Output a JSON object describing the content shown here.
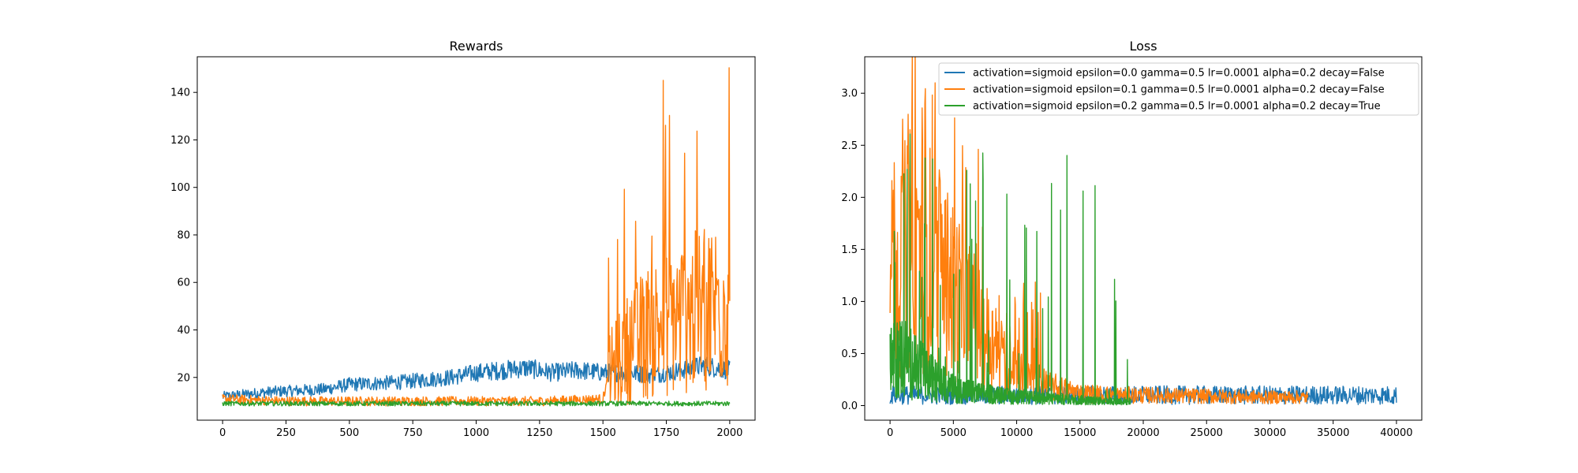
{
  "chart_data": [
    {
      "type": "line",
      "title": "Rewards",
      "xlabel": "",
      "ylabel": "",
      "xlim": [
        -100,
        2100
      ],
      "ylim": [
        2,
        155
      ],
      "xticks": [
        0,
        250,
        500,
        750,
        1000,
        1250,
        1500,
        1750,
        2000
      ],
      "xtick_labels": [
        "0",
        "250",
        "500",
        "750",
        "1000",
        "1250",
        "1500",
        "1750",
        "2000"
      ],
      "yticks": [
        20,
        40,
        60,
        80,
        100,
        120,
        140
      ],
      "ytick_labels": [
        "20",
        "40",
        "60",
        "80",
        "100",
        "120",
        "140"
      ],
      "grid": false,
      "series": [
        {
          "color": "#1f77b4",
          "x": [
            0,
            200,
            400,
            500,
            700,
            800,
            900,
            1000,
            1100,
            1200,
            1300,
            1400,
            1500,
            1600,
            1700,
            1800,
            1900,
            2000
          ],
          "y": [
            12,
            14,
            15,
            17,
            18,
            19,
            20,
            22,
            23,
            24,
            22,
            23,
            22,
            22,
            21,
            23,
            25,
            23
          ]
        },
        {
          "color": "#ff7f0e",
          "x": [
            0,
            250,
            500,
            750,
            1000,
            1250,
            1500,
            1520,
            1600,
            1700,
            1800,
            1900,
            2000
          ],
          "y": [
            11,
            10,
            10,
            10,
            10,
            10,
            11,
            20,
            30,
            38,
            42,
            45,
            50
          ]
        },
        {
          "color": "#2ca02c",
          "x": [
            0,
            500,
            1000,
            1500,
            2000
          ],
          "y": [
            9,
            9,
            9,
            9,
            9
          ]
        }
      ]
    },
    {
      "type": "line",
      "title": "Loss",
      "xlabel": "",
      "ylabel": "",
      "xlim": [
        -2000,
        42000
      ],
      "ylim": [
        -0.14,
        3.35
      ],
      "xticks": [
        0,
        5000,
        10000,
        15000,
        20000,
        25000,
        30000,
        35000,
        40000
      ],
      "xtick_labels": [
        "0",
        "5000",
        "10000",
        "15000",
        "20000",
        "25000",
        "30000",
        "35000",
        "40000"
      ],
      "yticks": [
        0.0,
        0.5,
        1.0,
        1.5,
        2.0,
        2.5,
        3.0
      ],
      "ytick_labels": [
        "0.0",
        "0.5",
        "1.0",
        "1.5",
        "2.0",
        "2.5",
        "3.0"
      ],
      "grid": false,
      "legend": "top-right",
      "series": [
        {
          "name": "activation=sigmoid epsilon=0.0 gamma=0.5 lr=0.0001 alpha=0.2 decay=False",
          "color": "#1f77b4",
          "x": [
            0,
            5000,
            10000,
            15000,
            20000,
            25000,
            30000,
            35000,
            40000
          ],
          "y": [
            0.1,
            0.1,
            0.1,
            0.1,
            0.1,
            0.1,
            0.1,
            0.1,
            0.1
          ]
        },
        {
          "name": "activation=sigmoid epsilon=0.1 gamma=0.5 lr=0.0001 alpha=0.2 decay=False",
          "color": "#ff7f0e",
          "x": [
            0,
            2000,
            5000,
            8000,
            10000,
            12000,
            15000,
            18000,
            20000,
            25000,
            30000,
            33000
          ],
          "y": [
            1.2,
            1.6,
            1.1,
            0.6,
            0.3,
            0.2,
            0.12,
            0.1,
            0.1,
            0.09,
            0.08,
            0.08
          ]
        },
        {
          "name": "activation=sigmoid epsilon=0.2 gamma=0.5 lr=0.0001 alpha=0.2 decay=True",
          "color": "#2ca02c",
          "x": [
            0,
            1000,
            3000,
            5000,
            7000,
            10000,
            13000,
            16000,
            19000
          ],
          "y": [
            0.5,
            0.6,
            0.35,
            0.2,
            0.15,
            0.1,
            0.08,
            0.06,
            0.05
          ]
        }
      ]
    }
  ]
}
